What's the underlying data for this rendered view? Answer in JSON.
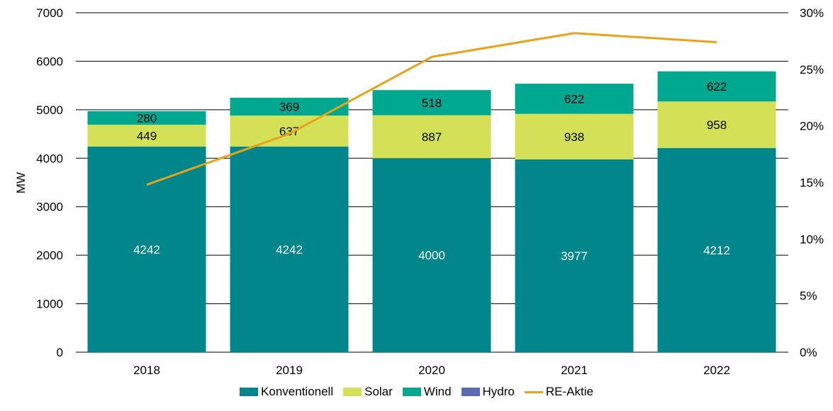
{
  "chart_data": {
    "type": "bar",
    "stacked": true,
    "categories": [
      "2018",
      "2019",
      "2020",
      "2021",
      "2022"
    ],
    "ylabel": "MW",
    "ylim": [
      0,
      7000
    ],
    "yticks": [
      "0",
      "1000",
      "2000",
      "3000",
      "4000",
      "5000",
      "6000",
      "7000"
    ],
    "y2lim": [
      0,
      30
    ],
    "y2ticks": [
      "0%",
      "5%",
      "10%",
      "15%",
      "20%",
      "25%",
      "30%"
    ],
    "grid": true,
    "legend_position": "bottom",
    "series": [
      {
        "name": "Konventionell",
        "color": "#00868b",
        "label_color": "#ffffff",
        "values": [
          4242,
          4242,
          4000,
          3977,
          4212
        ],
        "labels": [
          "4242",
          "4242",
          "4000",
          "3977",
          "4212"
        ]
      },
      {
        "name": "Solar",
        "color": "#d4e157",
        "label_color": "#000000",
        "values": [
          449,
          637,
          887,
          938,
          958
        ],
        "labels": [
          "449",
          "637",
          "887",
          "938",
          "958"
        ]
      },
      {
        "name": "Wind",
        "color": "#00a88f",
        "label_color": "#000000",
        "values": [
          280,
          369,
          518,
          622,
          622
        ],
        "labels": [
          "280",
          "369",
          "518",
          "622",
          "622"
        ]
      },
      {
        "name": "Hydro",
        "color": "#5b6bb5",
        "label_color": "#000000",
        "values": [
          0,
          0,
          0,
          0,
          0
        ],
        "labels": []
      }
    ],
    "line_series": {
      "name": "RE-Aktie",
      "color": "#e8a317",
      "axis": "right",
      "values": [
        14.8,
        19.3,
        26.1,
        28.2,
        27.4
      ]
    }
  },
  "legend": {
    "items": [
      {
        "label": "Konventionell",
        "kind": "box",
        "color": "#00868b"
      },
      {
        "label": "Solar",
        "kind": "box",
        "color": "#d4e157"
      },
      {
        "label": "Wind",
        "kind": "box",
        "color": "#00a88f"
      },
      {
        "label": "Hydro",
        "kind": "box",
        "color": "#5b6bb5"
      },
      {
        "label": "RE-Aktie",
        "kind": "line",
        "color": "#e8a317"
      }
    ]
  }
}
